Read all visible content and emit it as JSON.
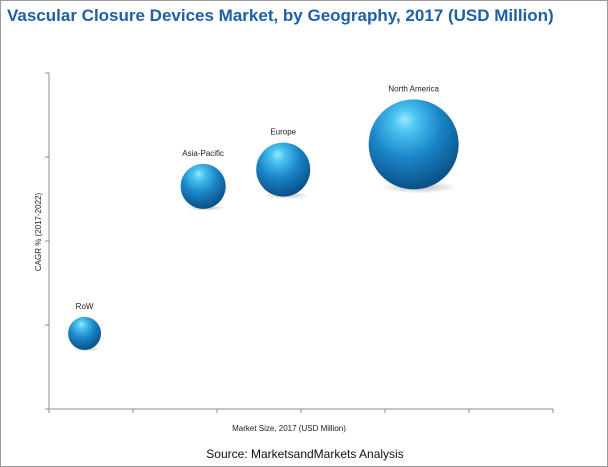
{
  "chart_data": {
    "type": "scatter",
    "subtype": "bubble",
    "title": "Vascular Closure Devices Market, by Geography, 2017 (USD Million)",
    "xlabel": "Market Size, 2017 (USD Million)",
    "ylabel": "CAGR % (2017-2022)",
    "x_tick_count": 6,
    "y_tick_count": 4,
    "grid": false,
    "legend": "none",
    "bubble_color": "#1a86c8",
    "series": [
      {
        "points": [
          {
            "label": "RoW",
            "x": 0.6,
            "y": 0.4,
            "size": 0.55
          },
          {
            "label": "Asia-Pacific",
            "x": 2.6,
            "y": 2.15,
            "size": 0.75
          },
          {
            "label": "Europe",
            "x": 3.95,
            "y": 2.35,
            "size": 0.9
          },
          {
            "label": "North America",
            "x": 6.15,
            "y": 2.65,
            "size": 1.5
          }
        ]
      }
    ],
    "xlim": [
      0,
      8.5
    ],
    "ylim": [
      -0.5,
      3.5
    ]
  },
  "footer": {
    "source": "Source: MarketsandMarkets Analysis"
  }
}
